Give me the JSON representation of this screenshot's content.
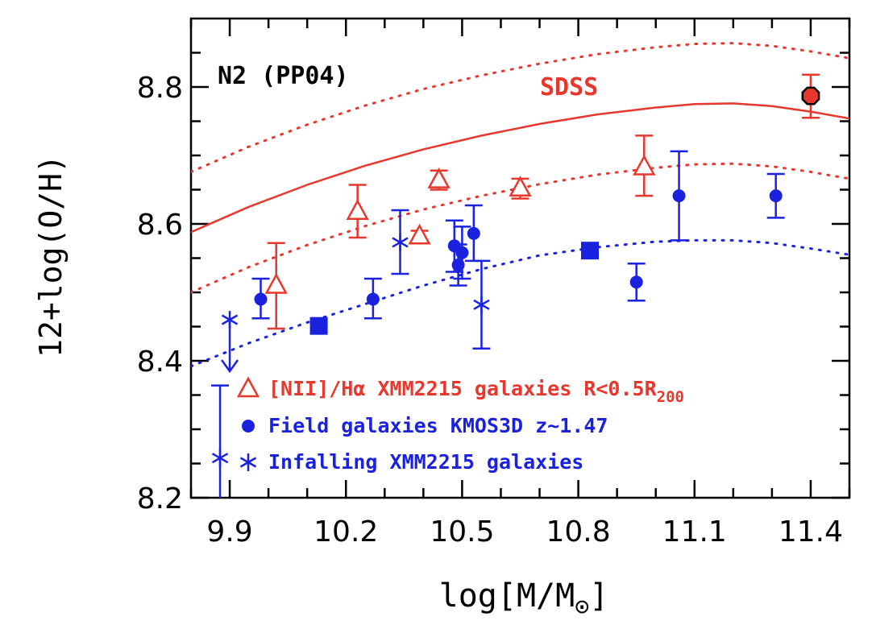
{
  "chart_data": {
    "type": "scatter",
    "xlabel": "log[M/M",
    "xlabel_sub": "⊙",
    "xlabel_close": "]",
    "ylabel": "12+log(O/H)",
    "xlim": [
      9.8,
      11.5
    ],
    "ylim": [
      8.2,
      8.9
    ],
    "xticks": [
      "9.9",
      "10.2",
      "10.5",
      "10.8",
      "11.1",
      "11.4"
    ],
    "yticks": [
      "8.2",
      "8.4",
      "8.6",
      "8.8"
    ],
    "annotation": "N2 (PP04)",
    "curve_label": "SDSS",
    "colors": {
      "red": "#e8372c",
      "blue": "#1a22e0",
      "axis": "#000000"
    },
    "curves": {
      "sdss": [
        [
          9.8,
          8.588
        ],
        [
          9.95,
          8.625
        ],
        [
          10.1,
          8.657
        ],
        [
          10.25,
          8.685
        ],
        [
          10.4,
          8.709
        ],
        [
          10.55,
          8.729
        ],
        [
          10.7,
          8.746
        ],
        [
          10.85,
          8.76
        ],
        [
          11.0,
          8.77
        ],
        [
          11.1,
          8.775
        ],
        [
          11.2,
          8.776
        ],
        [
          11.3,
          8.772
        ],
        [
          11.4,
          8.764
        ],
        [
          11.5,
          8.754
        ]
      ],
      "sdss_upper": [
        [
          9.8,
          8.676
        ],
        [
          9.95,
          8.713
        ],
        [
          10.1,
          8.745
        ],
        [
          10.25,
          8.773
        ],
        [
          10.4,
          8.797
        ],
        [
          10.55,
          8.817
        ],
        [
          10.7,
          8.834
        ],
        [
          10.85,
          8.848
        ],
        [
          11.0,
          8.858
        ],
        [
          11.1,
          8.863
        ],
        [
          11.2,
          8.864
        ],
        [
          11.3,
          8.86
        ],
        [
          11.4,
          8.852
        ],
        [
          11.5,
          8.842
        ]
      ],
      "sdss_lower": [
        [
          9.8,
          8.5
        ],
        [
          9.95,
          8.537
        ],
        [
          10.1,
          8.569
        ],
        [
          10.25,
          8.597
        ],
        [
          10.4,
          8.621
        ],
        [
          10.55,
          8.641
        ],
        [
          10.7,
          8.658
        ],
        [
          10.85,
          8.672
        ],
        [
          11.0,
          8.682
        ],
        [
          11.1,
          8.687
        ],
        [
          11.2,
          8.688
        ],
        [
          11.3,
          8.684
        ],
        [
          11.4,
          8.676
        ],
        [
          11.5,
          8.666
        ]
      ],
      "blue_fit": [
        [
          9.8,
          8.392
        ],
        [
          9.95,
          8.426
        ],
        [
          10.1,
          8.456
        ],
        [
          10.25,
          8.483
        ],
        [
          10.4,
          8.51
        ],
        [
          10.55,
          8.534
        ],
        [
          10.7,
          8.554
        ],
        [
          10.85,
          8.566
        ],
        [
          11.0,
          8.574
        ],
        [
          11.1,
          8.576
        ],
        [
          11.2,
          8.576
        ],
        [
          11.3,
          8.572
        ],
        [
          11.4,
          8.564
        ],
        [
          11.5,
          8.555
        ]
      ]
    },
    "series": [
      {
        "name": "[NII]/Hα XMM2215 galaxies R<0.5R",
        "name_sub": "200",
        "marker": "triangle",
        "color": "#e8372c",
        "points": [
          {
            "x": 10.02,
            "y": 8.51,
            "lo": 8.447,
            "hi": 8.572
          },
          {
            "x": 10.23,
            "y": 8.618,
            "lo": 8.58,
            "hi": 8.657
          },
          {
            "x": 10.39,
            "y": 8.582,
            "lo": 8.573,
            "hi": 8.59
          },
          {
            "x": 10.44,
            "y": 8.664,
            "lo": 8.65,
            "hi": 8.678
          },
          {
            "x": 10.65,
            "y": 8.652,
            "lo": 8.637,
            "hi": 8.666
          },
          {
            "x": 10.97,
            "y": 8.683,
            "lo": 8.641,
            "hi": 8.729
          }
        ]
      },
      {
        "name": "Field galaxies KMOS3D z~1.47",
        "marker": "circle",
        "color": "#1a22e0",
        "points": [
          {
            "x": 9.98,
            "y": 8.49,
            "lo": 8.462,
            "hi": 8.52
          },
          {
            "x": 10.27,
            "y": 8.49,
            "lo": 8.462,
            "hi": 8.52
          },
          {
            "x": 10.48,
            "y": 8.568,
            "lo": 8.53,
            "hi": 8.605
          },
          {
            "x": 10.49,
            "y": 8.54,
            "lo": 8.51,
            "hi": 8.57
          },
          {
            "x": 10.5,
            "y": 8.558,
            "lo": 8.52,
            "hi": 8.596
          },
          {
            "x": 10.53,
            "y": 8.586,
            "lo": 8.546,
            "hi": 8.627
          },
          {
            "x": 10.95,
            "y": 8.515,
            "lo": 8.488,
            "hi": 8.542
          },
          {
            "x": 11.06,
            "y": 8.641,
            "lo": 8.576,
            "hi": 8.706
          },
          {
            "x": 11.31,
            "y": 8.641,
            "lo": 8.609,
            "hi": 8.673
          }
        ]
      },
      {
        "name": "Infalling XMM2215 galaxies",
        "marker": "asterisk",
        "color": "#1a22e0",
        "points": [
          {
            "x": 9.9,
            "y": 8.46,
            "upper_limit": true
          },
          {
            "x": 9.875,
            "y": 8.258,
            "lo": 8.2,
            "hi": 8.364
          },
          {
            "x": 10.34,
            "y": 8.573,
            "lo": 8.527,
            "hi": 8.62
          },
          {
            "x": 10.55,
            "y": 8.482,
            "lo": 8.418,
            "hi": 8.546
          }
        ]
      },
      {
        "name": "",
        "marker": "square",
        "color": "#1a22e0",
        "points": [
          {
            "x": 10.13,
            "y": 8.451
          },
          {
            "x": 10.83,
            "y": 8.561
          }
        ]
      },
      {
        "name": "",
        "marker": "octagon",
        "color": "#e8372c",
        "points": [
          {
            "x": 11.4,
            "y": 8.787,
            "lo": 8.755,
            "hi": 8.818
          }
        ]
      }
    ]
  }
}
